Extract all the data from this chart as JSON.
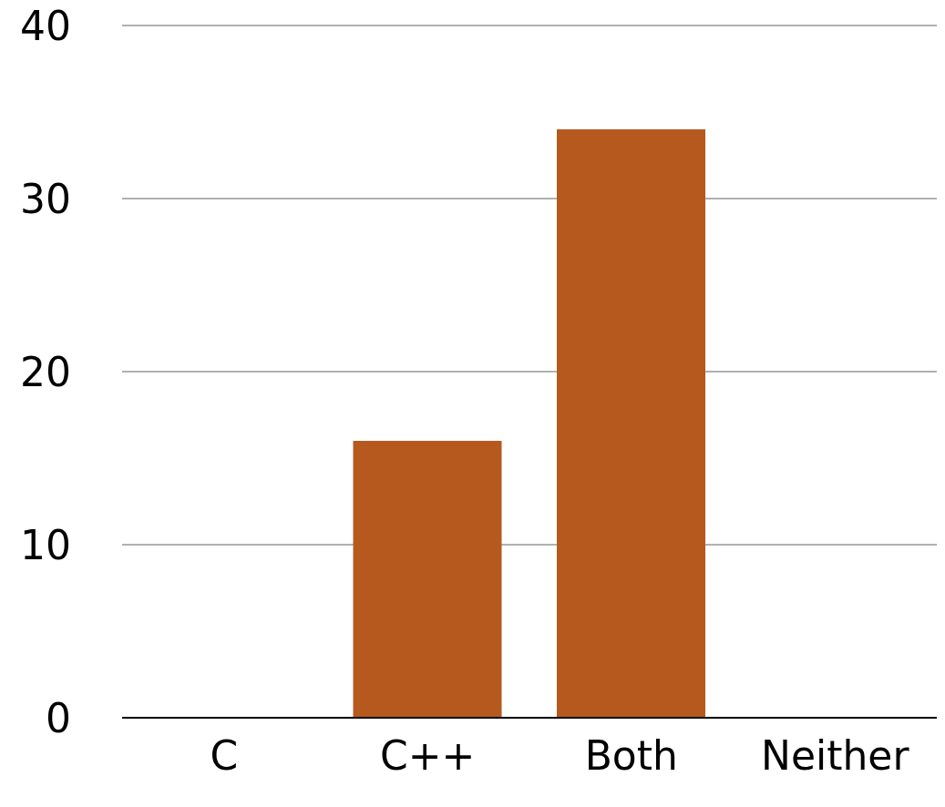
{
  "chart_data": {
    "type": "bar",
    "categories": [
      "C",
      "C++",
      "Both",
      "Neither"
    ],
    "values": [
      0,
      16,
      34,
      0
    ],
    "color": "#b5591f",
    "ylim": [
      0,
      40
    ],
    "yticks": [
      0,
      10,
      20,
      30,
      40
    ],
    "grid": "y"
  }
}
